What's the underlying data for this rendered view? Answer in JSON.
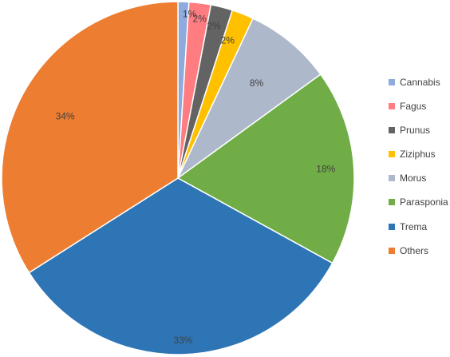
{
  "chart_data": {
    "type": "pie",
    "title": "",
    "legend_position": "right",
    "slices": [
      {
        "label": "Cannabis",
        "value": 1,
        "value_label": "1%",
        "color": "#8FAADC"
      },
      {
        "label": "Fagus",
        "value": 2,
        "value_label": "2%",
        "color": "#FF7C80"
      },
      {
        "label": "Prunus",
        "value": 2,
        "value_label": "2%",
        "color": "#636363"
      },
      {
        "label": "Ziziphus",
        "value": 2,
        "value_label": "2%",
        "color": "#FFC000"
      },
      {
        "label": "Morus",
        "value": 8,
        "value_label": "8%",
        "color": "#ADB9CA"
      },
      {
        "label": "Parasponia",
        "value": 18,
        "value_label": "18%",
        "color": "#70AD47"
      },
      {
        "label": "Trema",
        "value": 33,
        "value_label": "33%",
        "color": "#2E75B6"
      },
      {
        "label": "Others",
        "value": 34,
        "value_label": "34%",
        "color": "#ED7D31"
      }
    ]
  }
}
